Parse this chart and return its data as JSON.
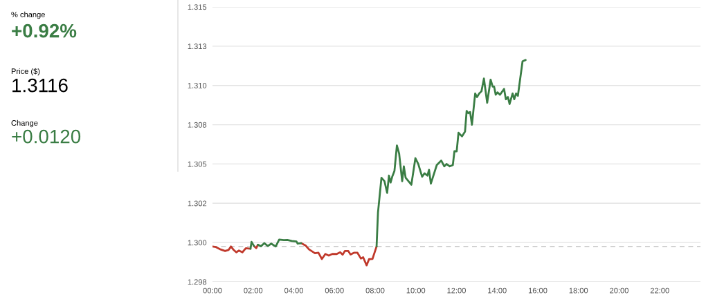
{
  "chart_data": {
    "type": "line",
    "annotations": [
      "% change",
      "+0.92%",
      "Price ($)",
      "1.3116",
      "Change",
      "+0.0120"
    ],
    "x": [
      0,
      0.17,
      0.4,
      0.62,
      0.79,
      0.91,
      1.02,
      1.17,
      1.3,
      1.47,
      1.64,
      1.87,
      1.92,
      2.04,
      2.15,
      2.23,
      2.38,
      2.55,
      2.72,
      2.89,
      3.11,
      3.28,
      3.51,
      3.68,
      3.9,
      4.13,
      4.19,
      4.36,
      4.58,
      4.75,
      5.04,
      5.21,
      5.38,
      5.55,
      5.72,
      5.89,
      6.11,
      6.28,
      6.4,
      6.51,
      6.68,
      6.79,
      6.96,
      7.13,
      7.3,
      7.41,
      7.58,
      7.7,
      7.87,
      8.07,
      8.14,
      8.31,
      8.46,
      8.59,
      8.68,
      8.76,
      8.84,
      8.95,
      9.07,
      9.18,
      9.33,
      9.41,
      9.5,
      9.78,
      9.98,
      10.12,
      10.31,
      10.43,
      10.57,
      10.65,
      10.74,
      11.03,
      11.25,
      11.4,
      11.51,
      11.67,
      11.82,
      11.9,
      12.01,
      12.1,
      12.27,
      12.42,
      12.5,
      12.58,
      12.67,
      12.76,
      12.92,
      13.01,
      13.12,
      13.23,
      13.35,
      13.51,
      13.68,
      13.78,
      13.85,
      13.93,
      14.02,
      14.14,
      14.34,
      14.43,
      14.53,
      14.61,
      14.76,
      14.84,
      14.93,
      15.02,
      15.25,
      15.4
    ],
    "series": [
      {
        "color": "#c0392b",
        "values": [
          1.29975,
          1.29971,
          1.29956,
          1.29946,
          1.29953,
          1.29975,
          1.29956,
          1.29938,
          1.29949,
          1.29938,
          1.29964,
          1.29961,
          null,
          1.29978,
          1.29964,
          1.29986,
          null,
          null,
          null,
          null,
          null,
          null,
          null,
          null,
          null,
          null,
          null,
          1.29996,
          1.29981,
          1.29956,
          1.29932,
          1.29935,
          1.29895,
          1.29927,
          1.29917,
          1.29927,
          1.29927,
          1.29938,
          1.29923,
          1.29946,
          1.29946,
          1.29924,
          1.29935,
          1.29935,
          1.29898,
          1.29906,
          1.29855,
          1.29894,
          1.29896,
          1.29975,
          null,
          null,
          null,
          null,
          null,
          null,
          null,
          null,
          null,
          null,
          null,
          null,
          null,
          null,
          null,
          null,
          null,
          null,
          null,
          null,
          null,
          null,
          null,
          null,
          null,
          null,
          null,
          null,
          null,
          null,
          null,
          null,
          null,
          null,
          null,
          null,
          null,
          null,
          null,
          null,
          null,
          null,
          null,
          null,
          null,
          null,
          null,
          null,
          null,
          null,
          null,
          null,
          null,
          null,
          null,
          null,
          null,
          null
        ]
      },
      {
        "color": "#3a7d44",
        "values": [
          null,
          null,
          null,
          null,
          null,
          null,
          null,
          null,
          null,
          null,
          null,
          1.29961,
          1.30004,
          1.29978,
          null,
          1.29986,
          1.29976,
          1.29996,
          1.29978,
          1.29993,
          1.29975,
          1.30019,
          1.30015,
          1.30017,
          1.3001,
          1.30007,
          1.29993,
          1.29996,
          null,
          null,
          null,
          null,
          null,
          null,
          null,
          null,
          null,
          null,
          null,
          null,
          null,
          null,
          null,
          null,
          null,
          null,
          null,
          null,
          null,
          1.29975,
          1.30191,
          1.30412,
          1.3039,
          1.30316,
          1.30426,
          1.30382,
          1.30419,
          1.30456,
          1.30618,
          1.30566,
          1.3039,
          1.30485,
          1.30412,
          1.30368,
          1.30537,
          1.305,
          1.30419,
          1.30441,
          1.30426,
          1.30463,
          1.30375,
          1.30493,
          1.30522,
          1.30485,
          1.305,
          1.30485,
          1.30493,
          1.30581,
          1.30581,
          1.30699,
          1.30676,
          1.30706,
          1.30838,
          1.30824,
          1.30831,
          1.3075,
          1.30949,
          1.30926,
          1.30949,
          1.30963,
          1.31044,
          1.3089,
          1.31037,
          1.30993,
          1.30993,
          1.30941,
          1.30956,
          1.30941,
          1.30978,
          1.30912,
          1.30926,
          1.30882,
          1.30949,
          1.30912,
          1.30949,
          1.30934,
          1.31154,
          1.31162
        ]
      }
    ],
    "xlim": [
      0,
      24
    ],
    "xticks": [
      {
        "value": 0,
        "label": "00:00"
      },
      {
        "value": 2,
        "label": "02:00"
      },
      {
        "value": 4,
        "label": "04:00"
      },
      {
        "value": 6,
        "label": "06:00"
      },
      {
        "value": 8,
        "label": "08:00"
      },
      {
        "value": 10,
        "label": "10:00"
      },
      {
        "value": 12,
        "label": "12:00"
      },
      {
        "value": 14,
        "label": "14:00"
      },
      {
        "value": 16,
        "label": "16:00"
      },
      {
        "value": 18,
        "label": "18:00"
      },
      {
        "value": 20,
        "label": "20:00"
      },
      {
        "value": 22,
        "label": "22:00"
      }
    ],
    "ylim": [
      1.2975,
      1.315
    ],
    "yticks": [
      {
        "value": 1.2975,
        "label": "1.298"
      },
      {
        "value": 1.3,
        "label": "1.300"
      },
      {
        "value": 1.3025,
        "label": "1.302"
      },
      {
        "value": 1.305,
        "label": "1.305"
      },
      {
        "value": 1.3075,
        "label": "1.308"
      },
      {
        "value": 1.31,
        "label": "1.310"
      },
      {
        "value": 1.3125,
        "label": "1.313"
      },
      {
        "value": 1.315,
        "label": "1.315"
      }
    ],
    "ref_lines": [
      {
        "axis": "y",
        "value": 1.29975,
        "color": "#bbbbbb",
        "line_style": "dashed"
      }
    ],
    "grid": "y",
    "line_style": "solid"
  }
}
